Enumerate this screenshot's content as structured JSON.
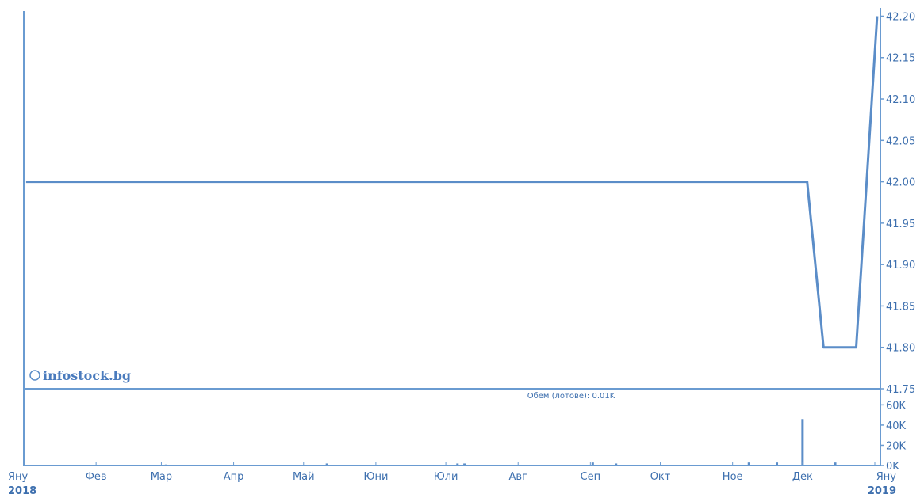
{
  "chart_data": [
    {
      "type": "line",
      "title": "",
      "xlabel": "",
      "ylabel": "",
      "ylim": [
        41.75,
        42.21
      ],
      "yticks": [
        "42.20",
        "42.15",
        "42.10",
        "42.05",
        "42.00",
        "41.95",
        "41.90",
        "41.85",
        "41.80",
        "41.75"
      ],
      "series": [
        {
          "x": [
            "2018-01-02",
            "2018-12-03",
            "2018-12-10",
            "2018-12-24",
            "2019-01-02"
          ],
          "y": [
            42.0,
            42.0,
            41.8,
            41.8,
            42.2
          ]
        }
      ],
      "watermark": "infostock.bg"
    },
    {
      "type": "bar",
      "title": "Обем (лотове): 0.01K",
      "ylim": [
        0,
        65
      ],
      "yticks": [
        "60K",
        "40K",
        "20K",
        "0K"
      ],
      "series": [
        {
          "x": [
            "2018-03-03",
            "2018-05-11",
            "2018-07-06",
            "2018-07-09",
            "2018-09-02",
            "2018-09-12",
            "2018-11-08",
            "2018-11-20",
            "2018-12-01",
            "2018-12-15"
          ],
          "values": [
            1,
            2,
            2,
            2,
            3,
            2,
            3,
            3,
            46,
            3
          ]
        }
      ]
    }
  ],
  "x_axis": {
    "labels": [
      {
        "line1": "Яну",
        "line2": "2018"
      },
      {
        "line1": "Фев",
        "line2": ""
      },
      {
        "line1": "Мар",
        "line2": ""
      },
      {
        "line1": "Апр",
        "line2": ""
      },
      {
        "line1": "Май",
        "line2": ""
      },
      {
        "line1": "Юни",
        "line2": ""
      },
      {
        "line1": "Юли",
        "line2": ""
      },
      {
        "line1": "Авг",
        "line2": ""
      },
      {
        "line1": "Сеп",
        "line2": ""
      },
      {
        "line1": "Окт",
        "line2": ""
      },
      {
        "line1": "Ное",
        "line2": ""
      },
      {
        "line1": "Дек",
        "line2": ""
      },
      {
        "line1": "Яну",
        "line2": "2019"
      }
    ],
    "dates": [
      "2018-01-01",
      "2018-02-01",
      "2018-03-01",
      "2018-04-01",
      "2018-05-01",
      "2018-06-01",
      "2018-07-01",
      "2018-08-01",
      "2018-09-01",
      "2018-10-01",
      "2018-11-01",
      "2018-12-01",
      "2019-01-01"
    ]
  },
  "colors": {
    "line": "#5b8dc8",
    "axis": "#6a9bd1",
    "text": "#3d6fae"
  }
}
